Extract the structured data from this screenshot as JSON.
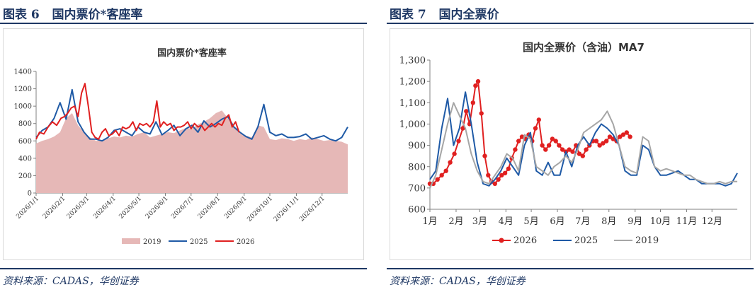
{
  "figures": [
    {
      "label": "图表 6   国内票价*客座率",
      "source": "资料来源：CADAS，华创证券"
    },
    {
      "label": "图表 7   国内全票价",
      "source": "资料来源：CADAS，华创证券"
    }
  ],
  "chart_data": [
    {
      "type": "area",
      "title": "国内票价*客座率",
      "ylim": [
        0,
        1400
      ],
      "yticks": [
        "0",
        "200",
        "400",
        "600",
        "800",
        "1000",
        "1200",
        "1400"
      ],
      "xticks": [
        "2026/1/1",
        "2026/2/1",
        "2026/3/1",
        "2026/4/1",
        "2026/5/1",
        "2026/6/1",
        "2026/7/1",
        "2026/8/1",
        "2026/9/1",
        "2026/10/1",
        "2026/11/1",
        "2026/12/1"
      ],
      "legend_position": "bottom",
      "series": [
        {
          "name": "2019",
          "style": "area",
          "color": "#e6b8b7",
          "x": [
            1,
            8,
            15,
            22,
            29,
            36,
            43,
            50,
            57,
            64,
            71,
            78,
            85,
            92,
            99,
            106,
            113,
            120,
            127,
            134,
            141,
            148,
            155,
            162,
            169,
            176,
            183,
            190,
            197,
            204,
            211,
            218,
            225,
            232,
            239,
            246,
            253,
            260,
            267,
            274,
            281,
            288,
            295,
            302,
            309,
            316,
            323,
            330,
            337,
            344,
            351,
            358,
            365
          ],
          "values": [
            570,
            600,
            620,
            650,
            700,
            860,
            920,
            780,
            700,
            640,
            600,
            610,
            630,
            650,
            640,
            660,
            650,
            680,
            700,
            640,
            660,
            680,
            700,
            690,
            720,
            750,
            740,
            790,
            820,
            860,
            920,
            950,
            860,
            760,
            700,
            660,
            640,
            780,
            760,
            620,
            610,
            630,
            620,
            600,
            620,
            610,
            640,
            620,
            600,
            610,
            600,
            590,
            560
          ]
        },
        {
          "name": "2025",
          "style": "line",
          "color": "#1f5aa6",
          "x": [
            1,
            8,
            15,
            22,
            29,
            36,
            43,
            50,
            57,
            64,
            71,
            78,
            85,
            92,
            99,
            106,
            113,
            120,
            127,
            134,
            141,
            148,
            155,
            162,
            169,
            176,
            183,
            190,
            197,
            204,
            211,
            218,
            225,
            232,
            239,
            246,
            253,
            260,
            267,
            274,
            281,
            288,
            295,
            302,
            309,
            316,
            323,
            330,
            337,
            344,
            351,
            358,
            365
          ],
          "values": [
            640,
            720,
            760,
            860,
            1040,
            850,
            1190,
            820,
            700,
            620,
            620,
            600,
            640,
            720,
            740,
            700,
            660,
            760,
            700,
            680,
            820,
            670,
            720,
            780,
            660,
            740,
            780,
            700,
            830,
            760,
            800,
            850,
            880,
            760,
            700,
            650,
            620,
            760,
            1020,
            700,
            660,
            680,
            640,
            640,
            650,
            680,
            620,
            640,
            660,
            620,
            600,
            640,
            760
          ]
        },
        {
          "name": "2026",
          "style": "line",
          "color": "#e02020",
          "x": [
            1,
            5,
            10,
            15,
            20,
            25,
            30,
            34,
            38,
            42,
            46,
            50,
            54,
            58,
            62,
            66,
            70,
            74,
            78,
            82,
            86,
            90,
            94,
            98,
            102,
            106,
            110,
            114,
            118,
            122,
            126,
            130,
            134,
            138,
            142,
            146,
            150,
            154,
            158,
            162,
            166,
            170,
            174,
            178,
            182,
            186,
            190,
            194,
            198,
            202,
            206,
            210,
            214,
            218,
            222,
            226,
            230,
            234,
            238
          ],
          "values": [
            620,
            700,
            680,
            760,
            820,
            780,
            860,
            880,
            920,
            980,
            1000,
            880,
            1150,
            1260,
            1000,
            700,
            640,
            620,
            700,
            740,
            660,
            680,
            720,
            660,
            760,
            740,
            760,
            820,
            720,
            800,
            780,
            800,
            760,
            820,
            1060,
            760,
            820,
            780,
            800,
            720,
            760,
            760,
            780,
            820,
            740,
            800,
            760,
            780,
            720,
            760,
            800,
            760,
            800,
            780,
            860,
            900,
            760,
            820,
            700
          ]
        }
      ]
    },
    {
      "type": "line",
      "title": "国内全票价（含油）MA7",
      "ylim": [
        600,
        1300
      ],
      "yticks": [
        "600",
        "700",
        "800",
        "900",
        "1,000",
        "1,100",
        "1,200",
        "1,300"
      ],
      "xticks": [
        "1月",
        "2月",
        "3月",
        "4月",
        "5月",
        "6月",
        "7月",
        "8月",
        "9月",
        "10月",
        "11月",
        "12月"
      ],
      "legend_position": "bottom",
      "series": [
        {
          "name": "2026",
          "style": "line-markers",
          "color": "#e02020",
          "x": [
            1,
            5,
            10,
            15,
            20,
            25,
            30,
            35,
            40,
            44,
            48,
            52,
            55,
            58,
            62,
            66,
            70,
            74,
            78,
            82,
            86,
            90,
            94,
            98,
            102,
            106,
            110,
            114,
            118,
            122,
            126,
            130,
            134,
            138,
            142,
            146,
            150,
            154,
            158,
            162,
            166,
            170,
            174,
            178,
            182,
            186,
            190,
            194,
            198,
            202,
            206,
            210,
            214,
            218,
            222,
            226,
            230,
            234,
            238
          ],
          "values": [
            720,
            720,
            740,
            760,
            780,
            820,
            860,
            920,
            980,
            1060,
            1000,
            1100,
            1180,
            1200,
            1050,
            850,
            760,
            730,
            720,
            740,
            760,
            770,
            790,
            840,
            880,
            920,
            940,
            930,
            950,
            920,
            980,
            1020,
            900,
            880,
            900,
            930,
            920,
            900,
            880,
            870,
            880,
            870,
            900,
            860,
            850,
            880,
            900,
            920,
            920,
            900,
            910,
            920,
            940,
            930,
            920,
            940,
            950,
            960,
            940
          ]
        },
        {
          "name": "2025",
          "style": "line",
          "color": "#1f5aa6",
          "x": [
            1,
            8,
            15,
            22,
            29,
            36,
            43,
            50,
            57,
            64,
            71,
            78,
            85,
            92,
            99,
            106,
            113,
            120,
            127,
            134,
            141,
            148,
            155,
            162,
            169,
            176,
            183,
            190,
            197,
            204,
            211,
            218,
            225,
            232,
            239,
            246,
            253,
            260,
            267,
            274,
            281,
            288,
            295,
            302,
            309,
            316,
            323,
            330,
            337,
            344,
            351,
            358,
            365
          ],
          "values": [
            740,
            780,
            980,
            1120,
            900,
            980,
            1150,
            1000,
            820,
            720,
            710,
            740,
            780,
            840,
            800,
            760,
            900,
            960,
            780,
            760,
            820,
            760,
            760,
            870,
            800,
            900,
            940,
            900,
            960,
            1000,
            980,
            950,
            900,
            780,
            760,
            760,
            900,
            880,
            800,
            760,
            760,
            770,
            780,
            760,
            740,
            740,
            720,
            720,
            720,
            720,
            710,
            720,
            770
          ]
        },
        {
          "name": "2019",
          "style": "line",
          "color": "#a6a6a6",
          "x": [
            1,
            8,
            15,
            22,
            29,
            36,
            43,
            50,
            57,
            64,
            71,
            78,
            85,
            92,
            99,
            106,
            113,
            120,
            127,
            134,
            141,
            148,
            155,
            162,
            169,
            176,
            183,
            190,
            197,
            204,
            211,
            218,
            225,
            232,
            239,
            246,
            253,
            260,
            267,
            274,
            281,
            288,
            295,
            302,
            309,
            316,
            323,
            330,
            337,
            344,
            351,
            358,
            365
          ],
          "values": [
            700,
            760,
            880,
            1000,
            1100,
            1040,
            980,
            860,
            780,
            730,
            720,
            760,
            800,
            860,
            840,
            780,
            950,
            930,
            800,
            780,
            760,
            800,
            820,
            850,
            820,
            880,
            960,
            980,
            1000,
            1020,
            1060,
            1000,
            900,
            800,
            780,
            770,
            940,
            920,
            800,
            780,
            790,
            780,
            770,
            760,
            760,
            740,
            730,
            720,
            720,
            730,
            720,
            730,
            730
          ]
        }
      ]
    }
  ]
}
